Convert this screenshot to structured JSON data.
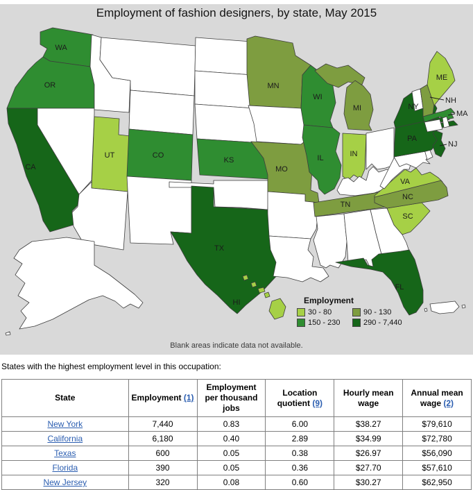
{
  "title": "Employment of fashion designers, by state, May 2015",
  "map": {
    "background": "#d9d9d9",
    "blank_fill": "#ffffff",
    "border_color": "#3d3d3d",
    "note": "Blank areas indicate data not available.",
    "legend": {
      "title": "Employment",
      "items": [
        {
          "label": "30 - 80",
          "color": "#a6d046"
        },
        {
          "label": "90 - 130",
          "color": "#7e9d40"
        },
        {
          "label": "150 - 230",
          "color": "#2f8d31"
        },
        {
          "label": "290 - 7,440",
          "color": "#166619"
        }
      ]
    },
    "states": {
      "WA": "150 - 230",
      "OR": "150 - 230",
      "CA": "290 - 7,440",
      "UT": "30 - 80",
      "CO": "150 - 230",
      "KS": "150 - 230",
      "TX": "290 - 7,440",
      "MN": "90 - 130",
      "WI": "150 - 230",
      "IL": "150 - 230",
      "MO": "90 - 130",
      "MI": "90 - 130",
      "IN": "30 - 80",
      "TN": "90 - 130",
      "NC": "90 - 130",
      "VA": "30 - 80",
      "SC": "30 - 80",
      "FL": "290 - 7,440",
      "NY": "290 - 7,440",
      "PA": "290 - 7,440",
      "NJ": "290 - 7,440",
      "NH": "90 - 130",
      "MA": "150 - 230",
      "ME": "30 - 80",
      "HI": "30 - 80"
    },
    "labeled_states": [
      "WA",
      "OR",
      "CA",
      "UT",
      "CO",
      "KS",
      "MN",
      "WI",
      "MI",
      "IN",
      "IL",
      "MO",
      "TN",
      "NC",
      "VA",
      "SC",
      "TX",
      "FL",
      "ME",
      "HI",
      "NY",
      "PA"
    ],
    "leader_labels": [
      "NH",
      "MA",
      "NJ"
    ]
  },
  "table_section": {
    "intro": "States with the highest employment level in this occupation:",
    "columns": [
      {
        "label": "State"
      },
      {
        "label": "Employment",
        "footnote_link": "(1)"
      },
      {
        "label": "Employment per thousand jobs"
      },
      {
        "label": "Location quotient",
        "footnote_link": "(9)"
      },
      {
        "label": "Hourly mean wage"
      },
      {
        "label": "Annual mean wage",
        "footnote_link": "(2)"
      }
    ],
    "rows": [
      {
        "state": "New York",
        "values": [
          "7,440",
          "0.83",
          "6.00",
          "$38.27",
          "$79,610"
        ]
      },
      {
        "state": "California",
        "values": [
          "6,180",
          "0.40",
          "2.89",
          "$34.99",
          "$72,780"
        ]
      },
      {
        "state": "Texas",
        "values": [
          "600",
          "0.05",
          "0.38",
          "$26.97",
          "$56,090"
        ]
      },
      {
        "state": "Florida",
        "values": [
          "390",
          "0.05",
          "0.36",
          "$27.70",
          "$57,610"
        ]
      },
      {
        "state": "New Jersey",
        "values": [
          "320",
          "0.08",
          "0.60",
          "$30.27",
          "$62,950"
        ]
      }
    ]
  }
}
